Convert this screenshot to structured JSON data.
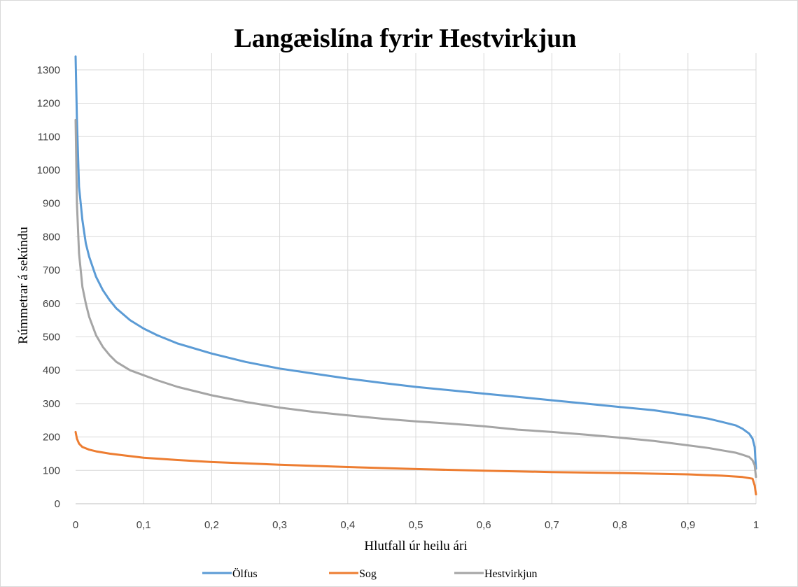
{
  "chart_data": {
    "type": "line",
    "title": "Langæislína fyrir Hestvirkjun",
    "xlabel": "Hlutfall úr heilu ári",
    "ylabel": "Rúmmetrar á sekúndu",
    "xlim": [
      0,
      1
    ],
    "ylim": [
      0,
      1350
    ],
    "xticks": [
      0,
      0.1,
      0.2,
      0.3,
      0.4,
      0.5,
      0.6,
      0.7,
      0.8,
      0.9,
      1
    ],
    "xtick_labels": [
      "0",
      "0,1",
      "0,2",
      "0,3",
      "0,4",
      "0,5",
      "0,6",
      "0,7",
      "0,8",
      "0,9",
      "1"
    ],
    "yticks": [
      0,
      100,
      200,
      300,
      400,
      500,
      600,
      700,
      800,
      900,
      1000,
      1100,
      1200,
      1300
    ],
    "ytick_labels": [
      "0",
      "100",
      "200",
      "300",
      "400",
      "500",
      "600",
      "700",
      "800",
      "900",
      "1000",
      "1100",
      "1200",
      "1300"
    ],
    "grid": true,
    "legend_position": "bottom",
    "series": [
      {
        "name": "Ölfus",
        "color": "#5b9bd5",
        "x": [
          0,
          0.002,
          0.005,
          0.01,
          0.015,
          0.02,
          0.03,
          0.04,
          0.05,
          0.06,
          0.08,
          0.1,
          0.12,
          0.15,
          0.2,
          0.25,
          0.3,
          0.35,
          0.4,
          0.45,
          0.5,
          0.55,
          0.6,
          0.65,
          0.7,
          0.75,
          0.8,
          0.85,
          0.9,
          0.93,
          0.95,
          0.97,
          0.98,
          0.99,
          0.995,
          0.998,
          1.0
        ],
        "y": [
          1340,
          1150,
          950,
          850,
          780,
          740,
          680,
          640,
          610,
          585,
          550,
          525,
          505,
          480,
          450,
          425,
          405,
          390,
          375,
          362,
          350,
          340,
          330,
          320,
          310,
          300,
          290,
          280,
          265,
          255,
          245,
          235,
          225,
          210,
          195,
          170,
          105
        ]
      },
      {
        "name": "Sog",
        "color": "#ed7d31",
        "x": [
          0,
          0.002,
          0.005,
          0.01,
          0.02,
          0.03,
          0.05,
          0.07,
          0.1,
          0.15,
          0.2,
          0.3,
          0.4,
          0.5,
          0.6,
          0.7,
          0.8,
          0.9,
          0.95,
          0.98,
          0.995,
          0.998,
          1.0
        ],
        "y": [
          215,
          195,
          180,
          170,
          162,
          157,
          150,
          145,
          138,
          131,
          125,
          117,
          110,
          104,
          99,
          95,
          92,
          88,
          84,
          80,
          75,
          55,
          28
        ]
      },
      {
        "name": "Hestvirkjun",
        "color": "#a5a5a5",
        "x": [
          0,
          0.002,
          0.005,
          0.01,
          0.015,
          0.02,
          0.03,
          0.04,
          0.05,
          0.06,
          0.08,
          0.1,
          0.12,
          0.15,
          0.2,
          0.25,
          0.3,
          0.35,
          0.4,
          0.45,
          0.5,
          0.55,
          0.6,
          0.65,
          0.7,
          0.75,
          0.8,
          0.85,
          0.9,
          0.93,
          0.95,
          0.97,
          0.98,
          0.99,
          0.995,
          0.998,
          1.0
        ],
        "y": [
          1150,
          900,
          750,
          650,
          600,
          560,
          505,
          470,
          445,
          425,
          400,
          385,
          370,
          350,
          325,
          305,
          288,
          275,
          265,
          255,
          247,
          240,
          232,
          222,
          215,
          207,
          198,
          188,
          175,
          167,
          160,
          153,
          147,
          140,
          130,
          115,
          80
        ]
      }
    ]
  }
}
